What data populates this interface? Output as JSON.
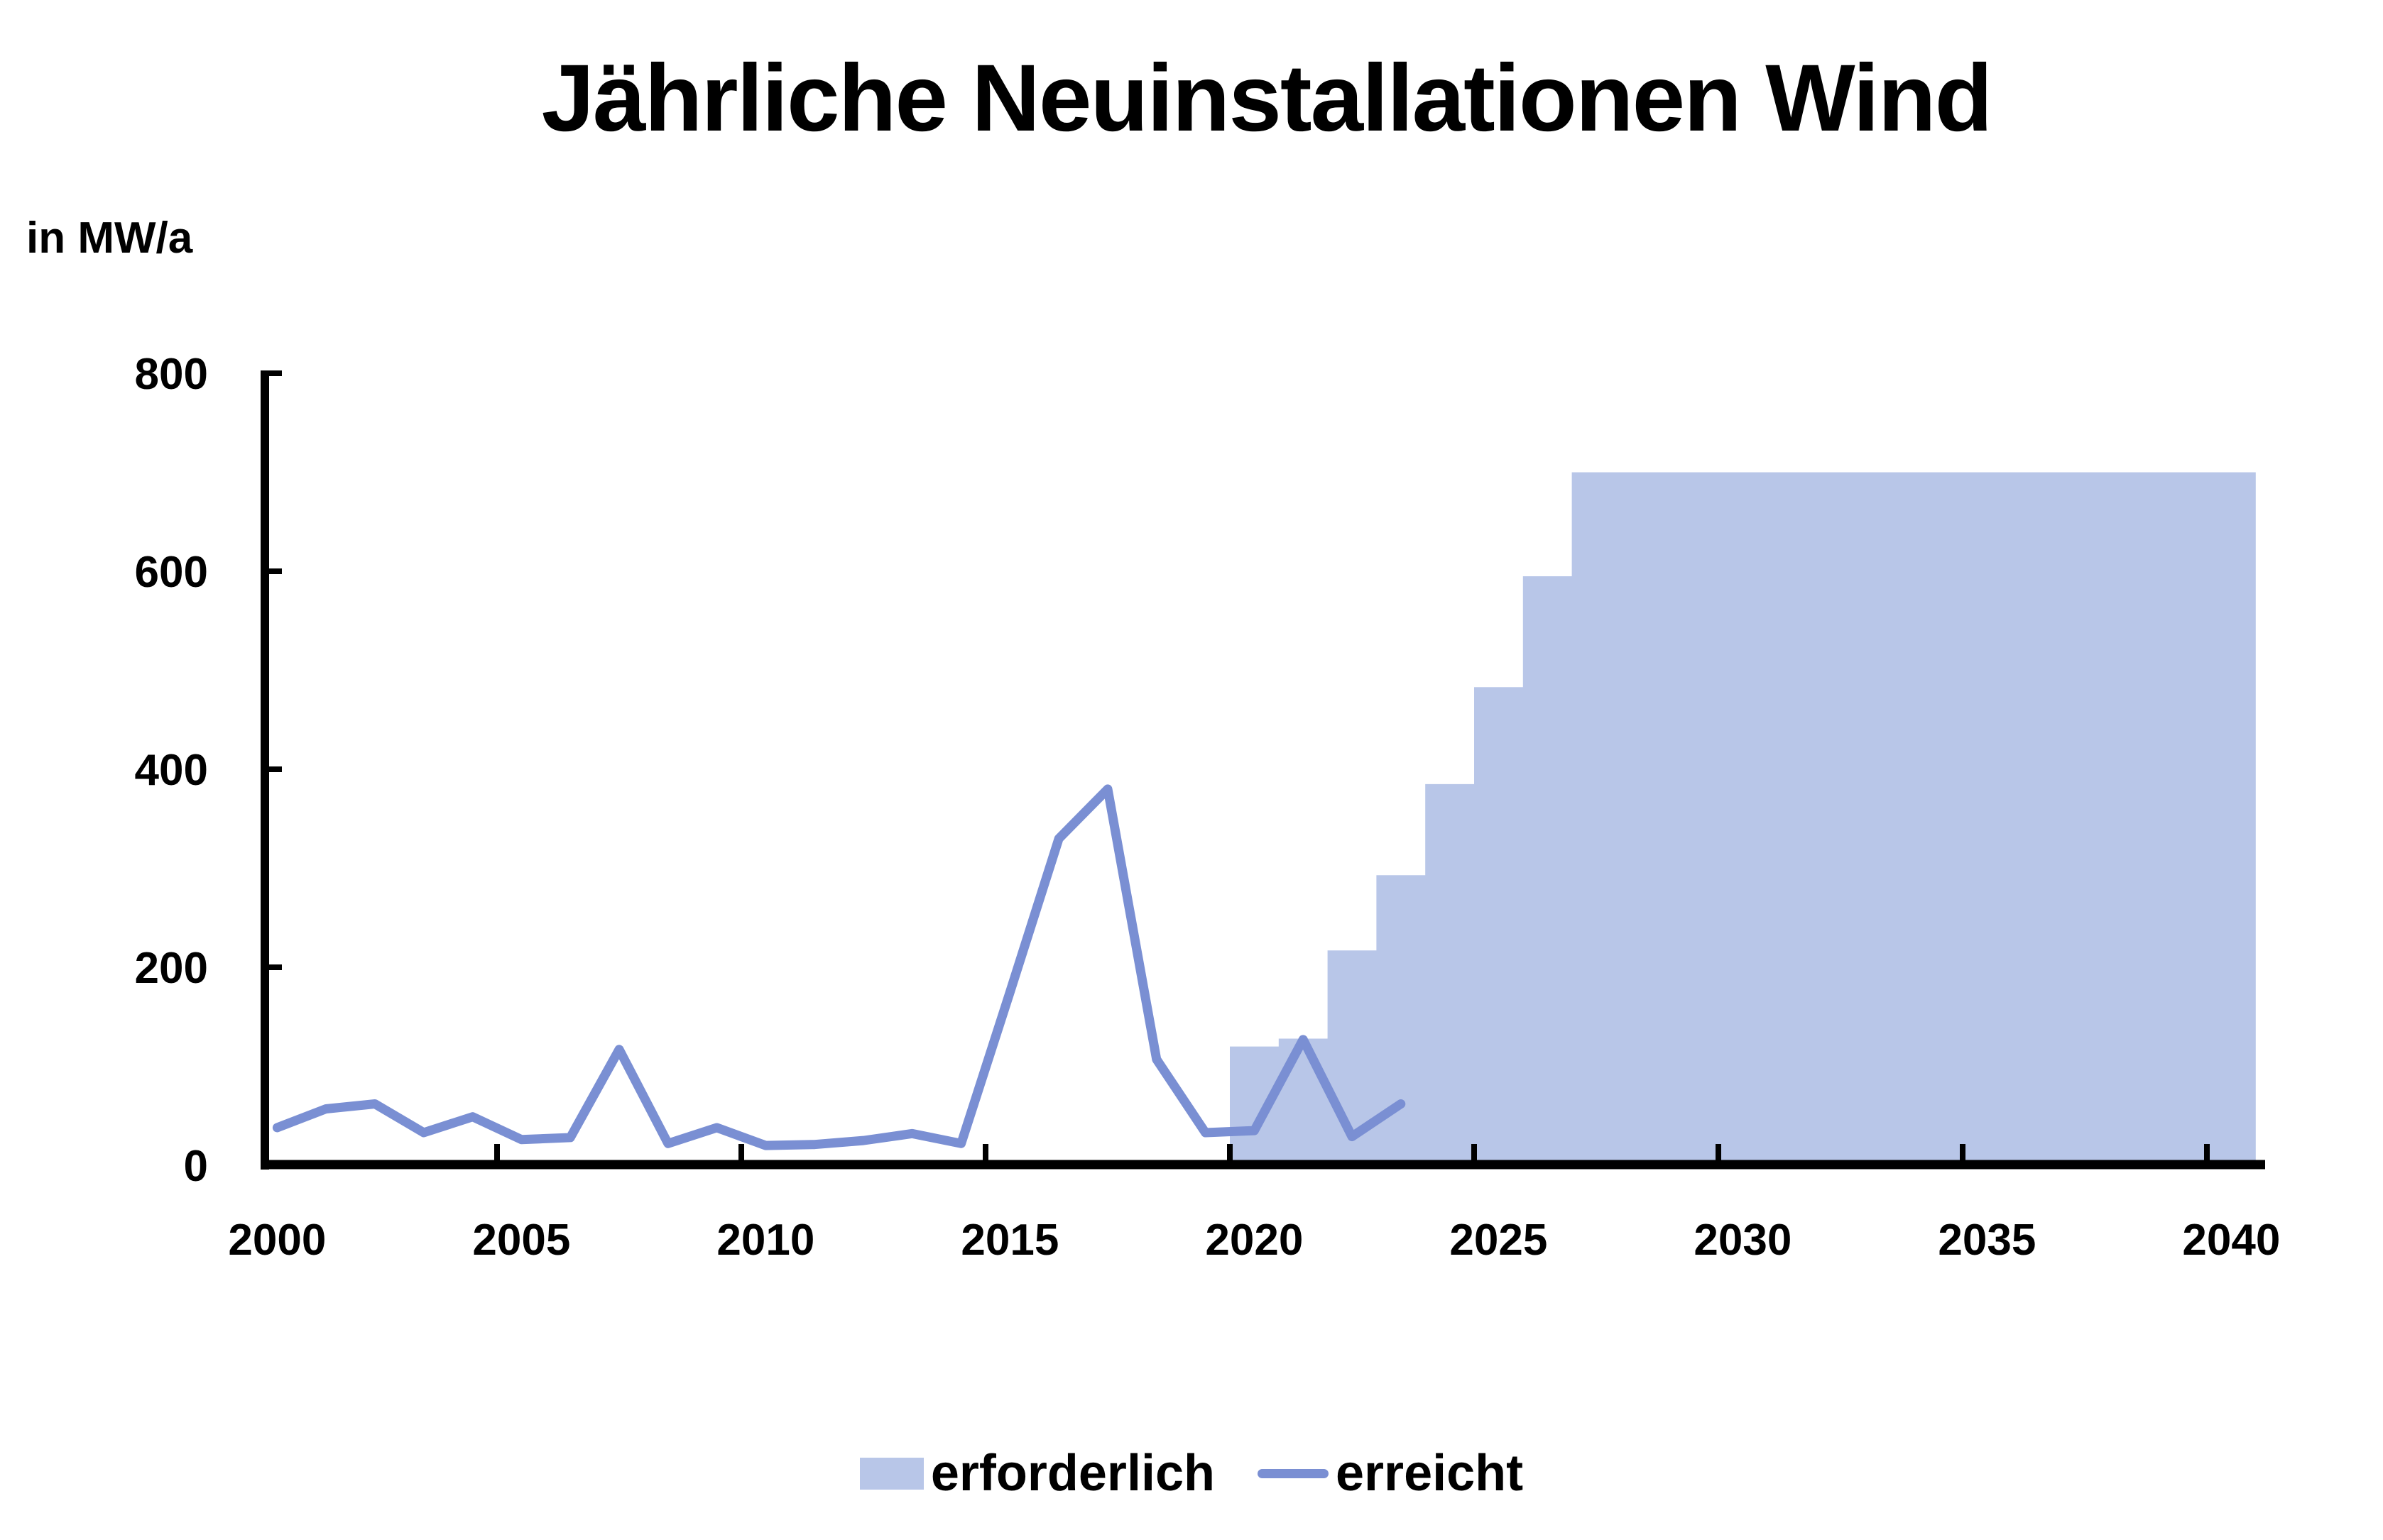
{
  "title": "Jährliche Neuinstallationen Wind",
  "y_axis": {
    "unit_label": "in MW/a",
    "ticks": [
      0,
      200,
      400,
      600,
      800
    ],
    "max": 800
  },
  "x_axis": {
    "label_years": [
      2000,
      2005,
      2010,
      2015,
      2020,
      2025,
      2030,
      2035,
      2040
    ],
    "tick_years": [
      2005,
      2010,
      2015,
      2020,
      2025,
      2030,
      2035,
      2040
    ],
    "range": [
      2000,
      2041
    ]
  },
  "legend": {
    "items": [
      {
        "label": "erforderlich",
        "type": "area",
        "color": "#b8c6e8"
      },
      {
        "label": "erreicht",
        "type": "line",
        "color": "#7a8fd3"
      }
    ]
  },
  "colors": {
    "area": "#b8c6e8",
    "line": "#7a8fd3",
    "axis": "#000000",
    "text": "#000000",
    "background": "#ffffff"
  },
  "chart_data": {
    "type": "area",
    "title": "Jährliche Neuinstallationen Wind",
    "xlabel": "",
    "ylabel": "in MW/a",
    "ylim": [
      0,
      800
    ],
    "xlim": [
      2000,
      2041
    ],
    "grid": false,
    "legend_position": "bottom",
    "series": [
      {
        "name": "erforderlich",
        "type": "step-area",
        "color": "#b8c6e8",
        "years": [
          2020,
          2021,
          2022,
          2023,
          2024,
          2025,
          2026,
          2027,
          2028,
          2029,
          2030,
          2031,
          2032,
          2033,
          2034,
          2035,
          2036,
          2037,
          2038,
          2039,
          2040
        ],
        "values": [
          120,
          128,
          217,
          293,
          385,
          483,
          595,
          700,
          700,
          700,
          700,
          700,
          700,
          700,
          700,
          700,
          700,
          700,
          700,
          700,
          700
        ]
      },
      {
        "name": "erreicht",
        "type": "line",
        "color": "#7a8fd3",
        "years": [
          2000,
          2001,
          2002,
          2003,
          2004,
          2005,
          2006,
          2007,
          2008,
          2009,
          2010,
          2011,
          2012,
          2013,
          2014,
          2015,
          2016,
          2017,
          2018,
          2019,
          2020,
          2021,
          2022,
          2023
        ],
        "values": [
          38,
          57,
          62,
          33,
          49,
          26,
          28,
          117,
          22,
          38,
          20,
          21,
          25,
          32,
          22,
          175,
          330,
          380,
          107,
          33,
          35,
          127,
          29,
          62
        ]
      }
    ]
  }
}
